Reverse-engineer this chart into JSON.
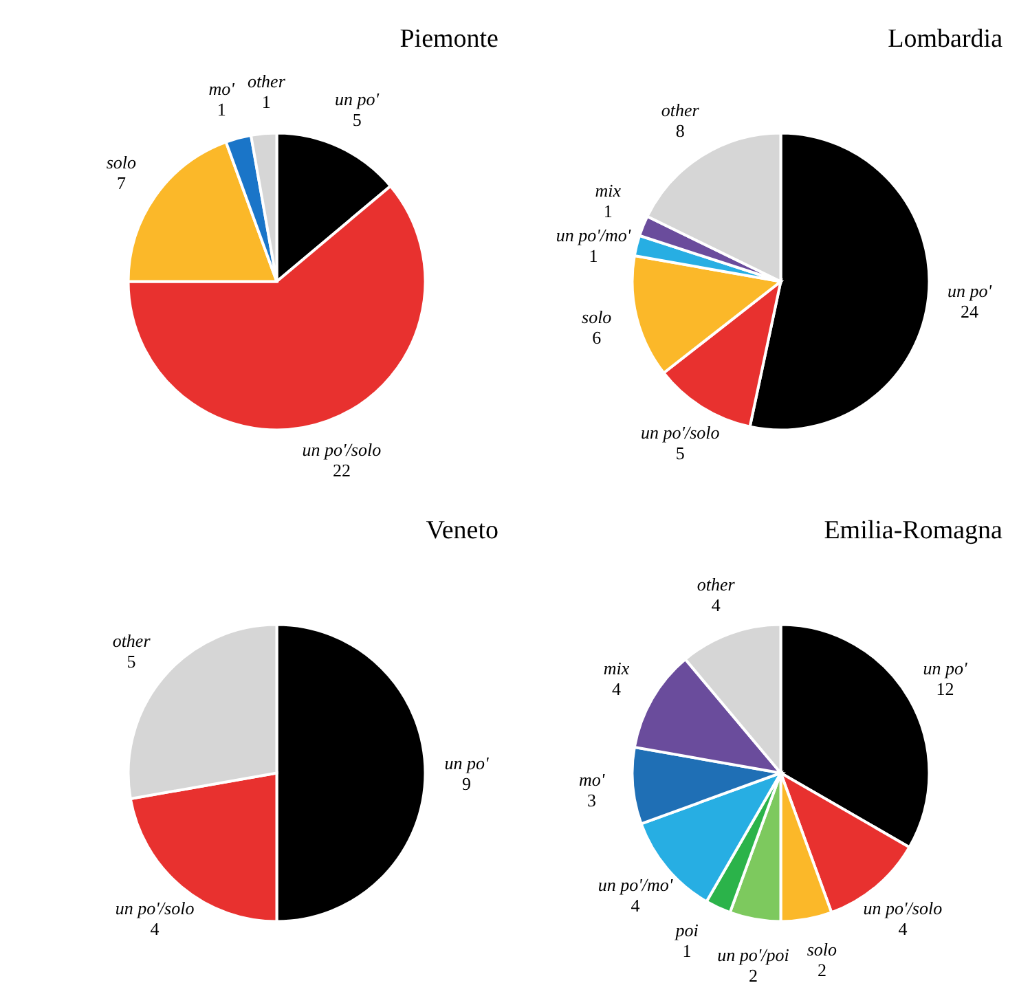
{
  "chart_data": [
    {
      "type": "pie",
      "title": "Piemonte",
      "categories": [
        "un po'",
        "un po'/solo",
        "solo",
        "mo'",
        "other"
      ],
      "values": [
        5,
        22,
        7,
        1,
        1
      ],
      "colors": [
        "#000000",
        "#e8312f",
        "#fbb829",
        "#1a75c8",
        "#d6d6d6"
      ],
      "data_labels": true
    },
    {
      "type": "pie",
      "title": "Lombardia",
      "categories": [
        "un po'",
        "un po'/solo",
        "solo",
        "un po'/mo'",
        "mix",
        "other"
      ],
      "values": [
        24,
        5,
        6,
        1,
        1,
        8
      ],
      "colors": [
        "#000000",
        "#e8312f",
        "#fbb829",
        "#27aee3",
        "#6a4c9c",
        "#d6d6d6"
      ],
      "data_labels": true
    },
    {
      "type": "pie",
      "title": "Veneto",
      "categories": [
        "un po'",
        "un po'/solo",
        "other"
      ],
      "values": [
        9,
        4,
        5
      ],
      "colors": [
        "#000000",
        "#e8312f",
        "#d6d6d6"
      ],
      "data_labels": true
    },
    {
      "type": "pie",
      "title": "Emilia-Romagna",
      "categories": [
        "un po'",
        "un po'/solo",
        "solo",
        "un po'/poi",
        "poi",
        "un po'/mo'",
        "mo'",
        "mix",
        "other"
      ],
      "values": [
        12,
        4,
        2,
        2,
        1,
        4,
        3,
        4,
        4
      ],
      "colors": [
        "#000000",
        "#e8312f",
        "#fbb829",
        "#7dc95e",
        "#2bb34a",
        "#27aee3",
        "#1f6fb5",
        "#6a4c9c",
        "#d6d6d6"
      ],
      "data_labels": true
    }
  ]
}
